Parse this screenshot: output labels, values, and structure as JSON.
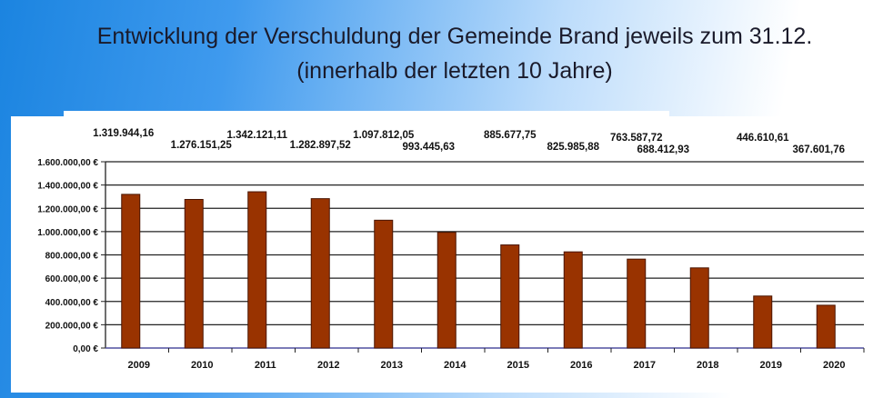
{
  "title_line1": "Entwicklung der Verschuldung der Gemeinde Brand jeweils zum 31.12.",
  "title_line2": "(innerhalb der letzten 10 Jahre)",
  "chart_data": {
    "type": "bar",
    "title": "Entwicklung der Verschuldung der Gemeinde Brand jeweils zum 31.12. (innerhalb der letzten 10 Jahre)",
    "categories": [
      "2009",
      "2010",
      "2011",
      "2012",
      "2013",
      "2014",
      "2015",
      "2016",
      "2017",
      "2018",
      "2019",
      "2020"
    ],
    "values": [
      1319944.16,
      1276151.25,
      1342121.11,
      1282897.52,
      1097812.05,
      993445.63,
      885677.75,
      825985.88,
      763587.72,
      688412.93,
      446610.61,
      367601.76
    ],
    "value_labels": [
      "1.319.944,16",
      "1.276.151,25",
      "1.342.121,11",
      "1.282.897,52",
      "1.097.812,05",
      "993.445,63",
      "885.677,75",
      "825.985,88",
      "763.587,72",
      "688.412,93",
      "446.610,61",
      "367.601,76"
    ],
    "yticks": [
      0,
      200000,
      400000,
      600000,
      800000,
      1000000,
      1200000,
      1400000,
      1600000
    ],
    "ytick_labels": [
      "0,00 €",
      "200.000,00 €",
      "400.000,00 €",
      "600.000,00 €",
      "800.000,00 €",
      "1.000.000,00 €",
      "1.200.000,00 €",
      "1.400.000,00 €",
      "1.600.000,00 €"
    ],
    "ylim": [
      0,
      1600000
    ],
    "xlabel": "",
    "ylabel": "",
    "grid": true,
    "bar_color": "#993300"
  }
}
